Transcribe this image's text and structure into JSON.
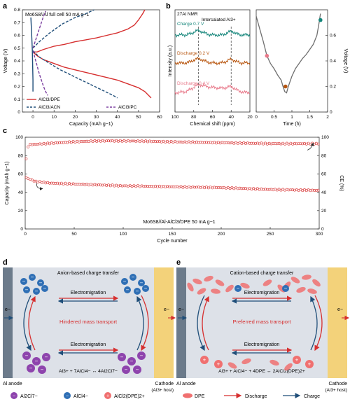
{
  "panel_labels": {
    "a": "a",
    "b": "b",
    "c": "c",
    "d": "d",
    "e": "e"
  },
  "colors": {
    "red": "#d62f2f",
    "navy": "#1f4e79",
    "purple": "#7b3fa0",
    "teal": "#14857a",
    "brown": "#b8560f",
    "pink": "#e8798a",
    "gray_curve": "#6f6f6f",
    "anode": "#6c7b8b",
    "cathode": "#f3d27a",
    "electrolyte": "#dde1e8",
    "anion": "#2f6fb5",
    "big_anion": "#8e44ad",
    "cation": "#f07070"
  },
  "chart_data": [
    {
      "id": "a",
      "type": "line",
      "title": "Mo6S8//Al full cell 50 mA g−1",
      "xlabel": "Capacity (mAh g−1)",
      "ylabel": "Voltage (V)",
      "xlim": [
        -5,
        60
      ],
      "ylim": [
        0,
        0.8
      ],
      "xticks": [
        0,
        10,
        20,
        30,
        40,
        50,
        60
      ],
      "yticks": [
        0,
        0.1,
        0.2,
        0.3,
        0.4,
        0.5,
        0.6,
        0.7,
        0.8
      ],
      "legend": "bottom",
      "series": [
        {
          "name": "AlCl3/DPE",
          "style": "solid",
          "color": "#d62f2f",
          "segments": [
            [
              [
                0,
                0.47
              ],
              [
                2,
                0.47
              ],
              [
                5,
                0.49
              ],
              [
                10,
                0.515
              ],
              [
                15,
                0.53
              ],
              [
                20,
                0.55
              ],
              [
                25,
                0.565
              ],
              [
                30,
                0.58
              ],
              [
                35,
                0.6
              ],
              [
                40,
                0.62
              ],
              [
                45,
                0.65
              ],
              [
                48,
                0.68
              ],
              [
                50,
                0.72
              ],
              [
                52,
                0.77
              ],
              [
                53,
                0.8
              ]
            ],
            [
              [
                0,
                0.47
              ],
              [
                2,
                0.44
              ],
              [
                5,
                0.41
              ],
              [
                10,
                0.38
              ],
              [
                15,
                0.35
              ],
              [
                20,
                0.33
              ],
              [
                25,
                0.31
              ],
              [
                30,
                0.29
              ],
              [
                35,
                0.27
              ],
              [
                40,
                0.25
              ],
              [
                45,
                0.22
              ],
              [
                50,
                0.19
              ],
              [
                53,
                0.16
              ],
              [
                56,
                0.11
              ]
            ]
          ]
        },
        {
          "name": "AlCl3/ACN",
          "style": "dashed",
          "color": "#1f4e79",
          "segments": [
            [
              [
                0,
                0.5
              ],
              [
                3,
                0.55
              ],
              [
                8,
                0.62
              ],
              [
                14,
                0.69
              ],
              [
                20,
                0.74
              ],
              [
                25,
                0.77
              ],
              [
                29,
                0.8
              ]
            ],
            [
              [
                0,
                0.48
              ],
              [
                3,
                0.43
              ],
              [
                8,
                0.38
              ],
              [
                13,
                0.33
              ],
              [
                18,
                0.29
              ],
              [
                23,
                0.25
              ],
              [
                28,
                0.21
              ],
              [
                33,
                0.17
              ],
              [
                38,
                0.13
              ],
              [
                40,
                0.11
              ]
            ]
          ]
        },
        {
          "name": "AlCl3/PC",
          "style": "dashed",
          "color": "#7b3fa0",
          "segments": [
            [
              [
                0,
                0.5
              ],
              [
                1,
                0.55
              ],
              [
                2,
                0.6
              ],
              [
                3,
                0.65
              ],
              [
                4,
                0.7
              ],
              [
                5,
                0.75
              ],
              [
                6,
                0.79
              ]
            ],
            [
              [
                0,
                0.48
              ],
              [
                1,
                0.42
              ],
              [
                2,
                0.36
              ],
              [
                3,
                0.3
              ],
              [
                4,
                0.25
              ],
              [
                5,
                0.2
              ],
              [
                6,
                0.16
              ],
              [
                7,
                0.13
              ]
            ]
          ]
        },
        {
          "name": "",
          "style": "solid",
          "color": "#1f4e79",
          "segments": [
            [
              [
                -1,
                0.74
              ],
              [
                -0.6,
                0.6
              ],
              [
                -0.3,
                0.48
              ],
              [
                0,
                0.25
              ],
              [
                0,
                0.16
              ]
            ]
          ]
        }
      ]
    },
    {
      "id": "b-left",
      "type": "line",
      "title": "27Al NMR",
      "annotation": "Intercalated Al3+",
      "xlabel": "Chemical shift (ppm)",
      "ylabel": "Intensity (a.u.)",
      "xlim": [
        100,
        20
      ],
      "xticks": [
        100,
        80,
        60,
        40,
        20
      ],
      "dashed_lines_x": [
        75,
        40
      ],
      "series": [
        {
          "name": "Charge 0.7 V",
          "color": "#14857a",
          "offset": 2.0
        },
        {
          "name": "Discharge 0.2 V",
          "color": "#b8560f",
          "offset": 1.0
        },
        {
          "name": "Discharge 0.4 V",
          "color": "#e8798a",
          "offset": 0.0
        }
      ]
    },
    {
      "id": "b-right",
      "type": "line",
      "xlabel": "Time (h)",
      "ylabel": "Voltage (V)",
      "xlim": [
        0,
        2.0
      ],
      "ylim": [
        0,
        0.8
      ],
      "xticks": [
        0,
        0.5,
        1.0,
        1.5,
        2.0
      ],
      "yticks": [
        0,
        0.2,
        0.4,
        0.6
      ],
      "series": [
        {
          "name": "",
          "color": "#6f6f6f",
          "values": [
            [
              0,
              0.75
            ],
            [
              0.1,
              0.65
            ],
            [
              0.2,
              0.55
            ],
            [
              0.3,
              0.44
            ],
            [
              0.4,
              0.38
            ],
            [
              0.5,
              0.34
            ],
            [
              0.6,
              0.29
            ],
            [
              0.7,
              0.25
            ],
            [
              0.75,
              0.2
            ],
            [
              0.8,
              0.16
            ],
            [
              0.85,
              0.15
            ],
            [
              0.9,
              0.2
            ],
            [
              1.0,
              0.28
            ],
            [
              1.1,
              0.34
            ],
            [
              1.2,
              0.38
            ],
            [
              1.3,
              0.42
            ],
            [
              1.4,
              0.45
            ],
            [
              1.5,
              0.49
            ],
            [
              1.6,
              0.53
            ],
            [
              1.7,
              0.6
            ],
            [
              1.75,
              0.68
            ],
            [
              1.8,
              0.77
            ]
          ]
        }
      ],
      "markers": [
        {
          "x": 0.3,
          "y": 0.44,
          "color": "#e8798a"
        },
        {
          "x": 0.82,
          "y": 0.2,
          "color": "#b8560f"
        },
        {
          "x": 1.8,
          "y": 0.72,
          "color": "#14857a"
        }
      ]
    },
    {
      "id": "c",
      "type": "scatter",
      "xlabel": "Cycle number",
      "ylabel": "Capacity (mAh g−1)",
      "ylabel_right": "CE (%)",
      "annotation": "Mo6S8//Al-AlCl3/DPE 50 mA g−1",
      "xlim": [
        0,
        300
      ],
      "ylim": [
        0,
        100
      ],
      "ylim_right": [
        0,
        100
      ],
      "xticks": [
        0,
        50,
        100,
        150,
        200,
        250,
        300
      ],
      "yticks": [
        0,
        20,
        40,
        60,
        80,
        100
      ],
      "yticks_right": [
        0,
        20,
        40,
        60,
        80,
        100
      ],
      "series": [
        {
          "name": "Coulombic efficiency",
          "color": "#d62f2f",
          "axis": "right",
          "values": [
            [
              1,
              76
            ],
            [
              3,
              90
            ],
            [
              5,
              92
            ],
            [
              20,
              93
            ],
            [
              50,
              95
            ],
            [
              75,
              96
            ],
            [
              100,
              96
            ],
            [
              150,
              95
            ],
            [
              200,
              94
            ],
            [
              250,
              93
            ],
            [
              300,
              93
            ]
          ]
        },
        {
          "name": "Capacity",
          "color": "#d62f2f",
          "axis": "left",
          "values": [
            [
              1,
              56
            ],
            [
              3,
              55
            ],
            [
              10,
              52
            ],
            [
              25,
              50
            ],
            [
              50,
              49
            ],
            [
              75,
              48
            ],
            [
              100,
              47
            ],
            [
              150,
              46
            ],
            [
              200,
              45
            ],
            [
              250,
              43
            ],
            [
              300,
              42
            ]
          ]
        }
      ]
    }
  ],
  "panel_d": {
    "title": "Anion-based charge transfer",
    "mid_label": "Hindered mass transport",
    "electromigration_top": "Electromigration",
    "electromigration_bottom": "Electromigration",
    "equation": "Al3+ + 7AlCl4− ↔ 4Al2Cl7−",
    "anode_label": "Al anode",
    "cathode_label": "Cathode",
    "cathode_sub": "(Al3+ host)",
    "electron": "e−"
  },
  "panel_e": {
    "title": "Cation-based charge transfer",
    "mid_label": "Preferred mass transport",
    "electromigration_top": "Electromigration",
    "electromigration_bottom": "Electromigration",
    "equation": "Al3+ + AlCl4− + 4DPE ↔ 2AlCl2(DPE)2+",
    "anode_label": "Al anode",
    "cathode_label": "Cathode",
    "cathode_sub": "(Al3+ host)",
    "electron": "e−"
  },
  "legend_bottom": {
    "items": [
      "Al2Cl7−",
      "AlCl4−",
      "AlCl2(DPE)2+",
      "DPE",
      "Discharge",
      "Charge"
    ]
  }
}
